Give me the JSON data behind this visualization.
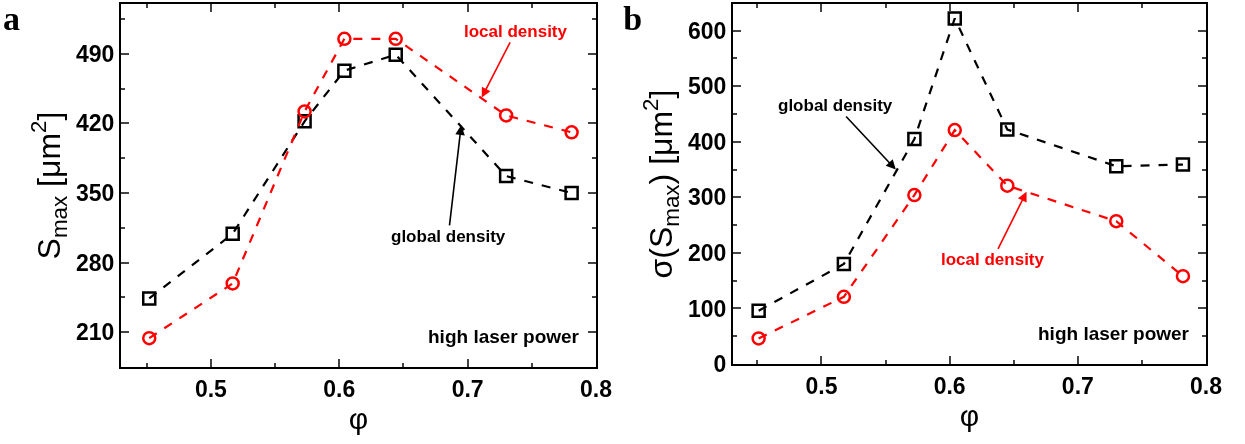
{
  "chart_data": [
    {
      "type": "line",
      "title": "a",
      "xlabel": "φ",
      "ylabel": "S$_{max}$ [μm$^{2}$]",
      "x": [
        0.452,
        0.517,
        0.573,
        0.604,
        0.644,
        0.73,
        0.781
      ],
      "series": [
        {
          "color": "#000000",
          "marker": "square",
          "values": [
            244,
            309,
            422,
            473,
            489,
            367,
            350
          ]
        },
        {
          "color": "#ff0000",
          "marker": "circle",
          "values": [
            204,
            259,
            432,
            505,
            505,
            428,
            411
          ]
        }
      ],
      "xlim": [
        0.43,
        0.8
      ],
      "xticks": [
        0.5,
        0.6,
        0.7,
        0.8
      ],
      "ylim": [
        175,
        540
      ],
      "yticks": [
        210,
        280,
        350,
        420,
        490
      ],
      "grid": false,
      "line_style": "dashed",
      "annotations": [
        {
          "text": "local density",
          "x": 0.711,
          "y": 446
        },
        {
          "text": "global density",
          "x": 0.695,
          "y": 418
        },
        "high laser power"
      ]
    },
    {
      "type": "line",
      "title": "b",
      "xlabel": "φ",
      "ylabel": "σ(S$_{max}$) [μm$^{2}$]",
      "x": [
        0.451,
        0.5175,
        0.5725,
        0.604,
        0.645,
        0.73,
        0.782
      ],
      "series": [
        {
          "color": "#000000",
          "marker": "square",
          "values": [
            96,
            180,
            405,
            622,
            422,
            356,
            359
          ]
        },
        {
          "color": "#ff0000",
          "marker": "circle",
          "values": [
            46,
            121,
            304,
            421,
            321,
            257,
            158
          ]
        }
      ],
      "xlim": [
        0.431,
        0.8
      ],
      "xticks": [
        0.5,
        0.6,
        0.7,
        0.8
      ],
      "ylim": [
        0,
        648
      ],
      "yticks": [
        0,
        100,
        200,
        300,
        400,
        500,
        600
      ],
      "grid": false,
      "line_style": "dashed",
      "annotations": [
        {
          "text": "global density",
          "x": 0.558,
          "y": 350
        },
        {
          "text": "local density",
          "x": 0.66,
          "y": 310
        },
        "high laser power"
      ]
    }
  ]
}
